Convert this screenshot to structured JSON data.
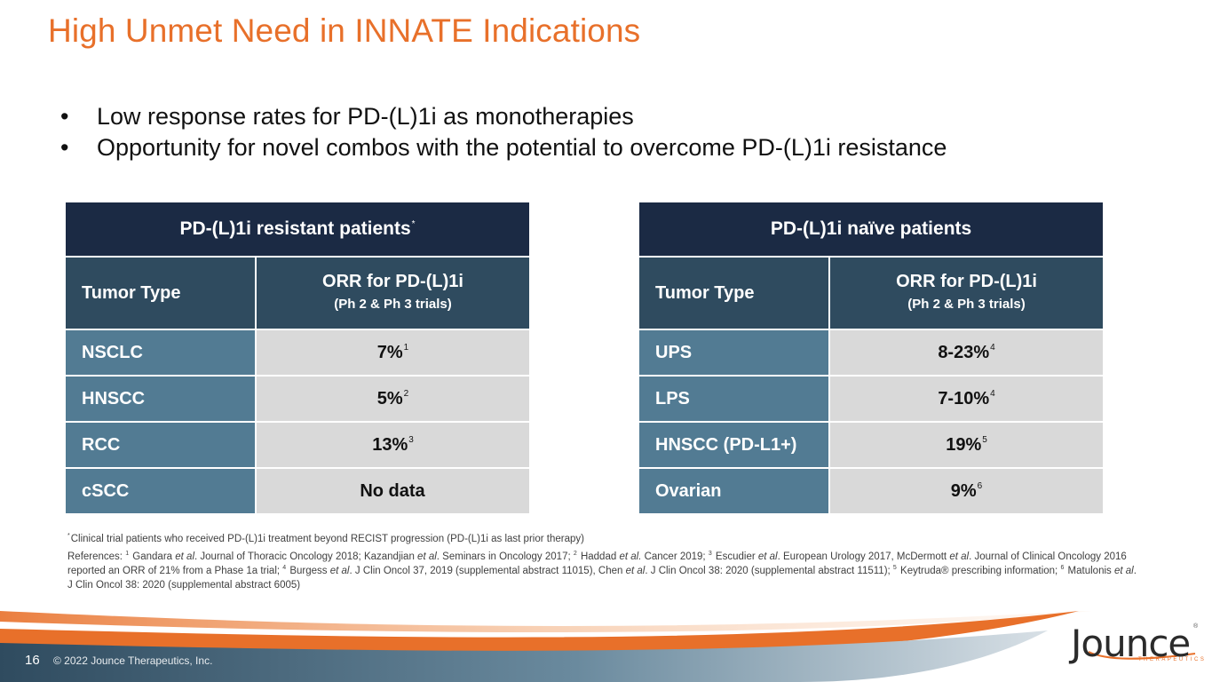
{
  "slide": {
    "title": "High Unmet Need in INNATE Indications",
    "bullets": [
      "Low response rates for PD-(L)1i as monotherapies",
      "Opportunity for novel combos with the potential to overcome PD-(L)1i resistance"
    ]
  },
  "table_resistant": {
    "title": "PD-(L)1i resistant patients",
    "title_mark": "*",
    "col1_header": "Tumor Type",
    "col2_header_line1": "ORR for PD-(L)1i",
    "col2_header_line2": "(Ph 2 & Ph 3 trials)",
    "rows": [
      {
        "tumor": "NSCLC",
        "orr": "7%",
        "ref": "1"
      },
      {
        "tumor": "HNSCC",
        "orr": "5%",
        "ref": "2"
      },
      {
        "tumor": "RCC",
        "orr": "13%",
        "ref": "3"
      },
      {
        "tumor": "cSCC",
        "orr": "No data",
        "ref": ""
      }
    ]
  },
  "table_naive": {
    "title": "PD-(L)1i naïve patients",
    "col1_header": "Tumor Type",
    "col2_header_line1": "ORR for PD-(L)1i",
    "col2_header_line2": "(Ph 2 & Ph 3 trials)",
    "rows": [
      {
        "tumor": "UPS",
        "orr": "8-23%",
        "ref": "4"
      },
      {
        "tumor": "LPS",
        "orr": "7-10%",
        "ref": "4"
      },
      {
        "tumor": "HNSCC (PD-L1+)",
        "orr": "19%",
        "ref": "5"
      },
      {
        "tumor": "Ovarian",
        "orr": "9%",
        "ref": "6"
      }
    ]
  },
  "footnotes": {
    "asterisk_mark": "*",
    "asterisk_note": "Clinical trial patients who received PD-(L)1i treatment beyond RECIST progression (PD-(L)1i as last prior therapy)",
    "refs_label": "References: ",
    "ref1_num": "1",
    "ref1_a": " Gandara ",
    "ref1_b": ". Journal of Thoracic Oncology 2018; Kazandjian ",
    "ref1_c": ". Seminars in Oncology 2017; ",
    "ref2_num": "2",
    "ref2_a": " Haddad ",
    "ref2_b": " Cancer 2019; ",
    "ref3_num": "3",
    "ref3_a": " Escudier ",
    "ref3_b": ". European Urology 2017, McDermott ",
    "ref3_c": ". Journal of Clinical Oncology 2016 reported an ORR of 21% from a Phase 1a trial; ",
    "ref4_num": "4",
    "ref4_a": " Burgess ",
    "ref4_b": ". J Clin Oncol 37, 2019 (supplemental abstract 11015), Chen ",
    "ref4_c": ". J Clin Oncol 38: 2020 (supplemental abstract 11511); ",
    "ref5_num": "5",
    "ref5_a": " Keytruda® prescribing information; ",
    "ref6_num": "6",
    "ref6_a": " Matulonis ",
    "ref6_b": ". J Clin Oncol 38: 2020 (supplemental abstract 6005)",
    "et_al": "et al",
    "et_al_dot": "et al."
  },
  "footer": {
    "page_number": "16",
    "copyright": "© 2022 Jounce Therapeutics, Inc.",
    "logo_text": "Jounce",
    "logo_tagline": "THERAPEUTICS",
    "logo_reg": "®"
  },
  "colors": {
    "accent_orange": "#e8702a",
    "header_navy": "#1b2a44",
    "subheader_slate": "#2f4b5f",
    "row_blue": "#527b93",
    "cell_gray": "#d9d9d9"
  }
}
